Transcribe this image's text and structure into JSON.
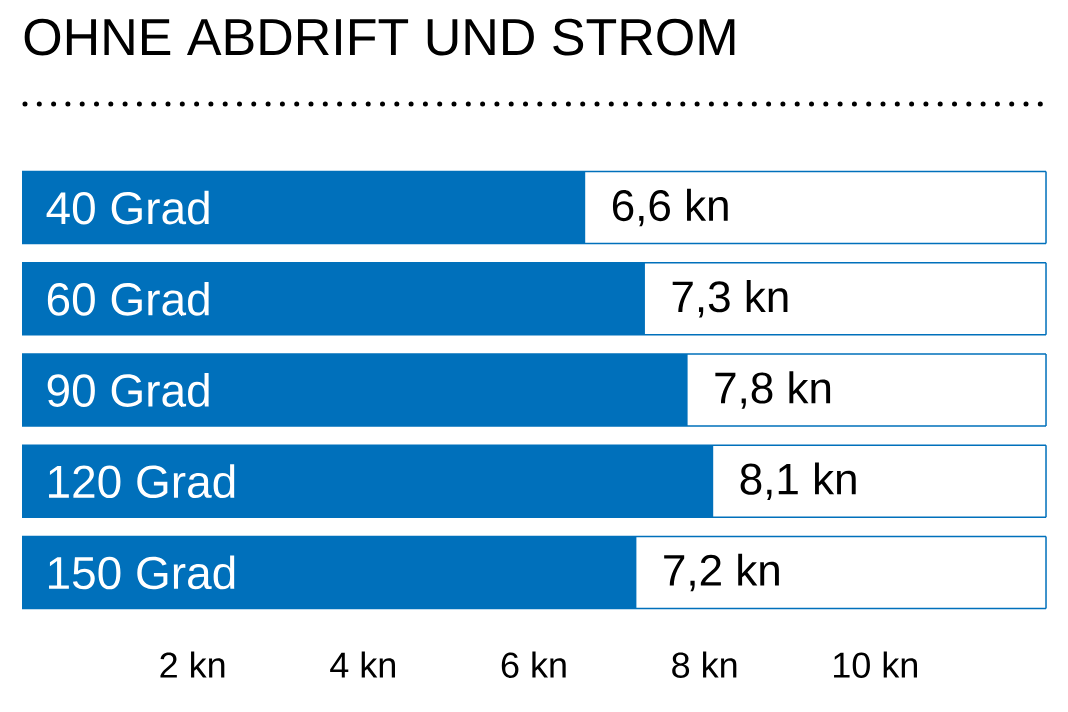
{
  "chart_data": {
    "type": "bar",
    "orientation": "horizontal",
    "title": "OHNE ABDRIFT UND STROM",
    "categories": [
      "40 Grad",
      "60 Grad",
      "90 Grad",
      "120 Grad",
      "150 Grad"
    ],
    "values": [
      6.6,
      7.3,
      7.8,
      8.1,
      7.2
    ],
    "value_labels": [
      "6,6 kn",
      "7,3 kn",
      "7,8 kn",
      "8,1 kn",
      "7,2 kn"
    ],
    "color": "#0070bb",
    "xlim": [
      0,
      12
    ],
    "xticks": [
      {
        "value": 2,
        "label": "2 kn"
      },
      {
        "value": 4,
        "label": "4 kn"
      },
      {
        "value": 6,
        "label": "6 kn"
      },
      {
        "value": 8,
        "label": "8 kn"
      },
      {
        "value": 10,
        "label": "10 kn"
      }
    ]
  }
}
